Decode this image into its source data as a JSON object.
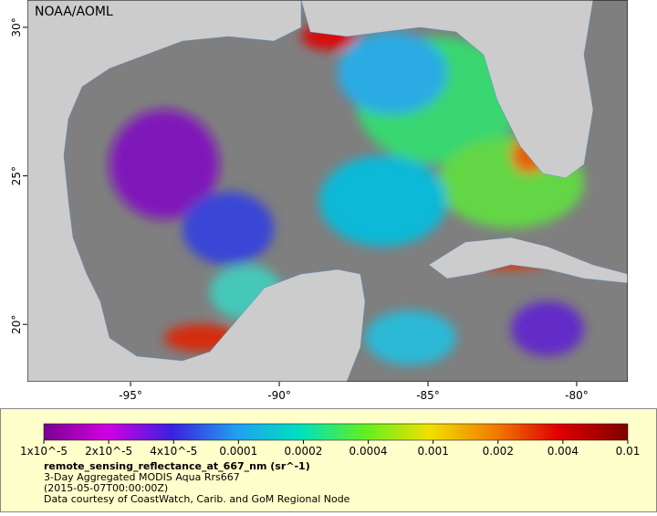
{
  "map": {
    "credit": "NOAA/AOML",
    "xlim": [
      -98.47,
      -78.28
    ],
    "ylim": [
      18.07,
      30.92
    ],
    "xticks": [
      {
        "value": -95,
        "label": "-95°"
      },
      {
        "value": -90,
        "label": "-90°"
      },
      {
        "value": -85,
        "label": "-85°"
      },
      {
        "value": -80,
        "label": "-80°"
      }
    ],
    "yticks": [
      {
        "value": 20,
        "label": "20°"
      },
      {
        "value": 25,
        "label": "25°"
      },
      {
        "value": 30,
        "label": "30°"
      }
    ]
  },
  "colorbar": {
    "ticks": [
      {
        "value": 1e-05,
        "label": "1x10^-5"
      },
      {
        "value": 2e-05,
        "label": "2x10^-5"
      },
      {
        "value": 4e-05,
        "label": "4x10^-5"
      },
      {
        "value": 0.0001,
        "label": "0.0001"
      },
      {
        "value": 0.0002,
        "label": "0.0002"
      },
      {
        "value": 0.0004,
        "label": "0.0004"
      },
      {
        "value": 0.001,
        "label": "0.001"
      },
      {
        "value": 0.002,
        "label": "0.002"
      },
      {
        "value": 0.004,
        "label": "0.004"
      },
      {
        "value": 0.01,
        "label": "0.01"
      }
    ]
  },
  "legend": {
    "variable": "remote_sensing_reflectance_at_667_nm (sr^-1)",
    "lines": [
      "3-Day Aggregated MODIS Aqua Rrs667",
      "(2015-05-07T00:00:00Z)",
      "Data courtesy of CoastWatch, Carib. and GoM Regional Node"
    ]
  }
}
